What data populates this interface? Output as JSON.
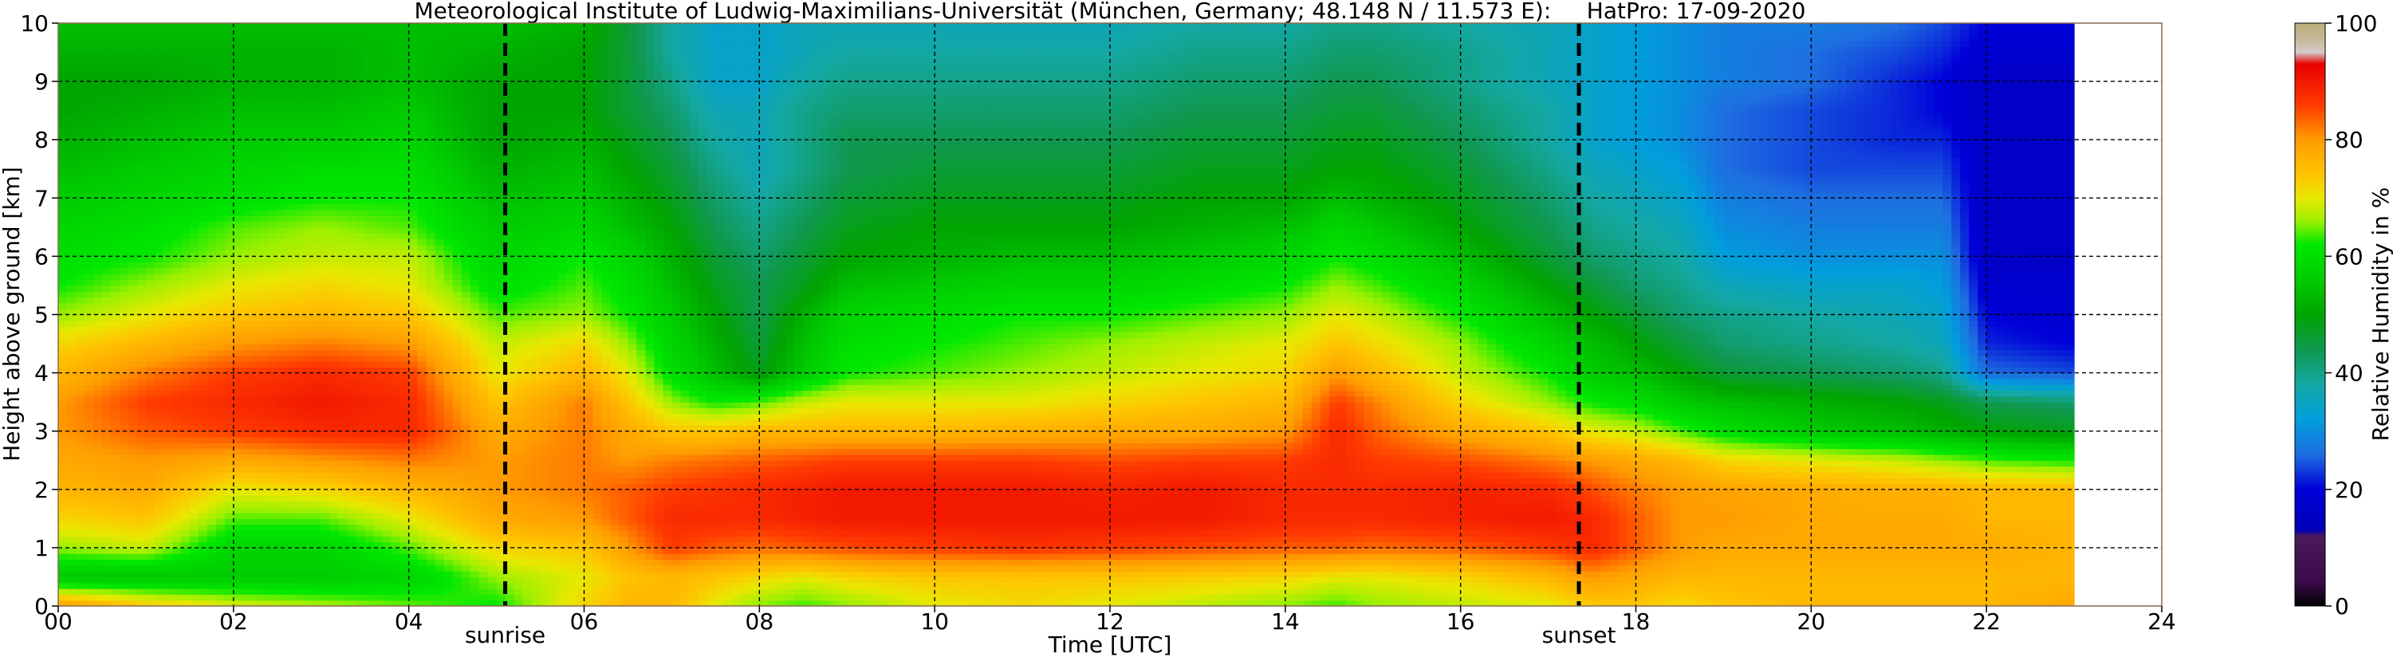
{
  "chart_data": {
    "type": "heatmap",
    "title": "Meteorological Institute of Ludwig-Maximilians-Universität (München, Germany; 48.148 N / 11.573 E):     HatPro: 17-09-2020",
    "xlabel": "Time [UTC]",
    "ylabel": "Height above ground [km]",
    "xlim": [
      0,
      24
    ],
    "ylim": [
      0,
      10
    ],
    "x_ticks": [
      "00",
      "02",
      "04",
      "06",
      "08",
      "10",
      "12",
      "14",
      "16",
      "18",
      "20",
      "22",
      "24"
    ],
    "y_ticks": [
      "0",
      "1",
      "2",
      "3",
      "4",
      "5",
      "6",
      "7",
      "8",
      "9",
      "10"
    ],
    "grid": true,
    "data_end_hour": 23,
    "colorbar": {
      "label": "Relative Humidity in %",
      "range": [
        0,
        100
      ],
      "ticks": [
        "0",
        "20",
        "40",
        "60",
        "80",
        "100"
      ]
    },
    "markers": [
      {
        "label": "sunrise",
        "x": 5.1
      },
      {
        "label": "sunset",
        "x": 17.35
      }
    ],
    "time_hours": [
      0,
      1,
      2,
      3,
      4,
      5,
      6,
      6.5,
      7,
      7.5,
      8,
      8.5,
      9,
      10,
      11,
      12,
      13,
      14,
      14.6,
      15,
      16,
      17,
      17.5,
      18,
      18.5,
      19,
      20,
      21,
      21.5,
      22,
      23
    ],
    "heights_km": [
      0.05,
      0.5,
      1,
      1.5,
      2,
      2.5,
      3,
      3.5,
      4,
      4.5,
      5,
      5.5,
      6,
      6.5,
      7,
      7.5,
      8,
      8.5,
      9,
      9.5,
      10
    ],
    "rh_percent": [
      [
        78,
        72,
        68,
        66,
        64,
        62,
        72,
        76,
        76,
        70,
        66,
        64,
        66,
        70,
        72,
        70,
        68,
        66,
        64,
        66,
        68,
        70,
        74,
        74,
        72,
        74,
        76,
        76,
        76,
        76,
        78
      ],
      [
        55,
        55,
        56,
        56,
        58,
        66,
        70,
        74,
        76,
        74,
        72,
        70,
        72,
        74,
        74,
        74,
        73,
        72,
        70,
        70,
        72,
        76,
        80,
        78,
        76,
        76,
        76,
        76,
        76,
        76,
        76
      ],
      [
        66,
        68,
        58,
        58,
        64,
        72,
        74,
        80,
        86,
        84,
        83,
        84,
        85,
        86,
        87,
        86,
        85,
        84,
        84,
        83,
        84,
        86,
        88,
        84,
        80,
        78,
        78,
        78,
        78,
        78,
        76
      ],
      [
        72,
        74,
        64,
        64,
        70,
        78,
        80,
        84,
        88,
        88,
        88,
        89,
        90,
        90,
        90,
        90,
        90,
        88,
        88,
        88,
        89,
        90,
        88,
        84,
        80,
        80,
        78,
        78,
        78,
        76,
        76
      ],
      [
        76,
        78,
        70,
        72,
        76,
        80,
        82,
        84,
        86,
        87,
        88,
        89,
        90,
        90,
        90,
        89,
        90,
        88,
        88,
        88,
        89,
        88,
        85,
        82,
        80,
        79,
        78,
        77,
        77,
        76,
        76
      ],
      [
        78,
        80,
        78,
        80,
        82,
        80,
        82,
        80,
        82,
        83,
        84,
        85,
        86,
        86,
        86,
        85,
        86,
        86,
        88,
        86,
        85,
        82,
        80,
        78,
        76,
        72,
        70,
        68,
        66,
        64,
        62
      ],
      [
        80,
        84,
        86,
        88,
        88,
        78,
        82,
        78,
        74,
        74,
        76,
        76,
        76,
        76,
        77,
        78,
        78,
        80,
        88,
        84,
        78,
        74,
        70,
        68,
        64,
        60,
        56,
        54,
        52,
        50,
        48
      ],
      [
        80,
        86,
        88,
        90,
        88,
        74,
        82,
        74,
        66,
        62,
        64,
        68,
        70,
        70,
        70,
        72,
        74,
        76,
        86,
        82,
        72,
        66,
        62,
        60,
        56,
        54,
        52,
        50,
        48,
        44,
        42
      ],
      [
        76,
        82,
        86,
        88,
        86,
        70,
        76,
        70,
        60,
        54,
        48,
        56,
        62,
        64,
        66,
        68,
        70,
        72,
        80,
        76,
        68,
        62,
        56,
        54,
        50,
        46,
        44,
        42,
        40,
        26,
        24
      ],
      [
        72,
        76,
        80,
        82,
        80,
        68,
        72,
        66,
        58,
        52,
        46,
        54,
        60,
        62,
        64,
        66,
        68,
        70,
        74,
        72,
        66,
        58,
        54,
        50,
        46,
        42,
        40,
        38,
        36,
        22,
        20
      ],
      [
        66,
        70,
        74,
        76,
        74,
        64,
        66,
        62,
        56,
        50,
        44,
        52,
        58,
        60,
        62,
        62,
        64,
        66,
        70,
        68,
        62,
        54,
        50,
        46,
        42,
        40,
        38,
        36,
        34,
        20,
        18
      ],
      [
        62,
        66,
        70,
        72,
        70,
        60,
        64,
        60,
        54,
        48,
        44,
        48,
        54,
        56,
        58,
        58,
        60,
        62,
        66,
        64,
        58,
        50,
        46,
        42,
        40,
        36,
        34,
        34,
        32,
        18,
        18
      ],
      [
        60,
        62,
        66,
        68,
        68,
        58,
        62,
        58,
        52,
        46,
        42,
        46,
        50,
        52,
        54,
        54,
        56,
        58,
        62,
        60,
        54,
        46,
        42,
        40,
        38,
        32,
        30,
        30,
        30,
        16,
        16
      ],
      [
        58,
        60,
        64,
        66,
        64,
        56,
        58,
        54,
        50,
        44,
        40,
        44,
        48,
        50,
        50,
        50,
        52,
        54,
        58,
        56,
        50,
        44,
        40,
        38,
        36,
        30,
        28,
        28,
        28,
        16,
        16
      ],
      [
        56,
        58,
        60,
        62,
        62,
        54,
        56,
        52,
        48,
        42,
        38,
        42,
        46,
        48,
        48,
        48,
        50,
        50,
        54,
        52,
        48,
        42,
        38,
        36,
        34,
        28,
        26,
        26,
        26,
        16,
        16
      ],
      [
        54,
        56,
        58,
        60,
        60,
        52,
        54,
        50,
        46,
        40,
        36,
        40,
        44,
        46,
        46,
        46,
        48,
        48,
        50,
        50,
        46,
        40,
        36,
        34,
        32,
        26,
        24,
        24,
        24,
        16,
        16
      ],
      [
        52,
        54,
        56,
        56,
        58,
        50,
        52,
        48,
        44,
        38,
        36,
        40,
        44,
        44,
        44,
        44,
        46,
        46,
        48,
        48,
        44,
        38,
        34,
        32,
        30,
        26,
        24,
        22,
        22,
        16,
        16
      ],
      [
        50,
        52,
        54,
        54,
        56,
        50,
        50,
        46,
        42,
        36,
        36,
        40,
        42,
        42,
        42,
        42,
        44,
        44,
        46,
        46,
        42,
        38,
        34,
        32,
        30,
        26,
        24,
        22,
        20,
        16,
        16
      ],
      [
        50,
        50,
        52,
        52,
        54,
        50,
        50,
        46,
        40,
        34,
        34,
        38,
        40,
        40,
        40,
        40,
        42,
        42,
        44,
        44,
        40,
        36,
        34,
        32,
        30,
        28,
        26,
        22,
        20,
        16,
        16
      ],
      [
        52,
        52,
        52,
        52,
        54,
        52,
        50,
        46,
        38,
        34,
        34,
        36,
        38,
        38,
        38,
        38,
        40,
        40,
        42,
        42,
        40,
        36,
        34,
        32,
        30,
        28,
        26,
        24,
        22,
        18,
        18
      ],
      [
        54,
        54,
        54,
        54,
        54,
        54,
        52,
        46,
        38,
        34,
        34,
        36,
        36,
        36,
        36,
        36,
        38,
        38,
        40,
        40,
        38,
        36,
        34,
        32,
        30,
        28,
        28,
        26,
        24,
        20,
        20
      ]
    ]
  }
}
